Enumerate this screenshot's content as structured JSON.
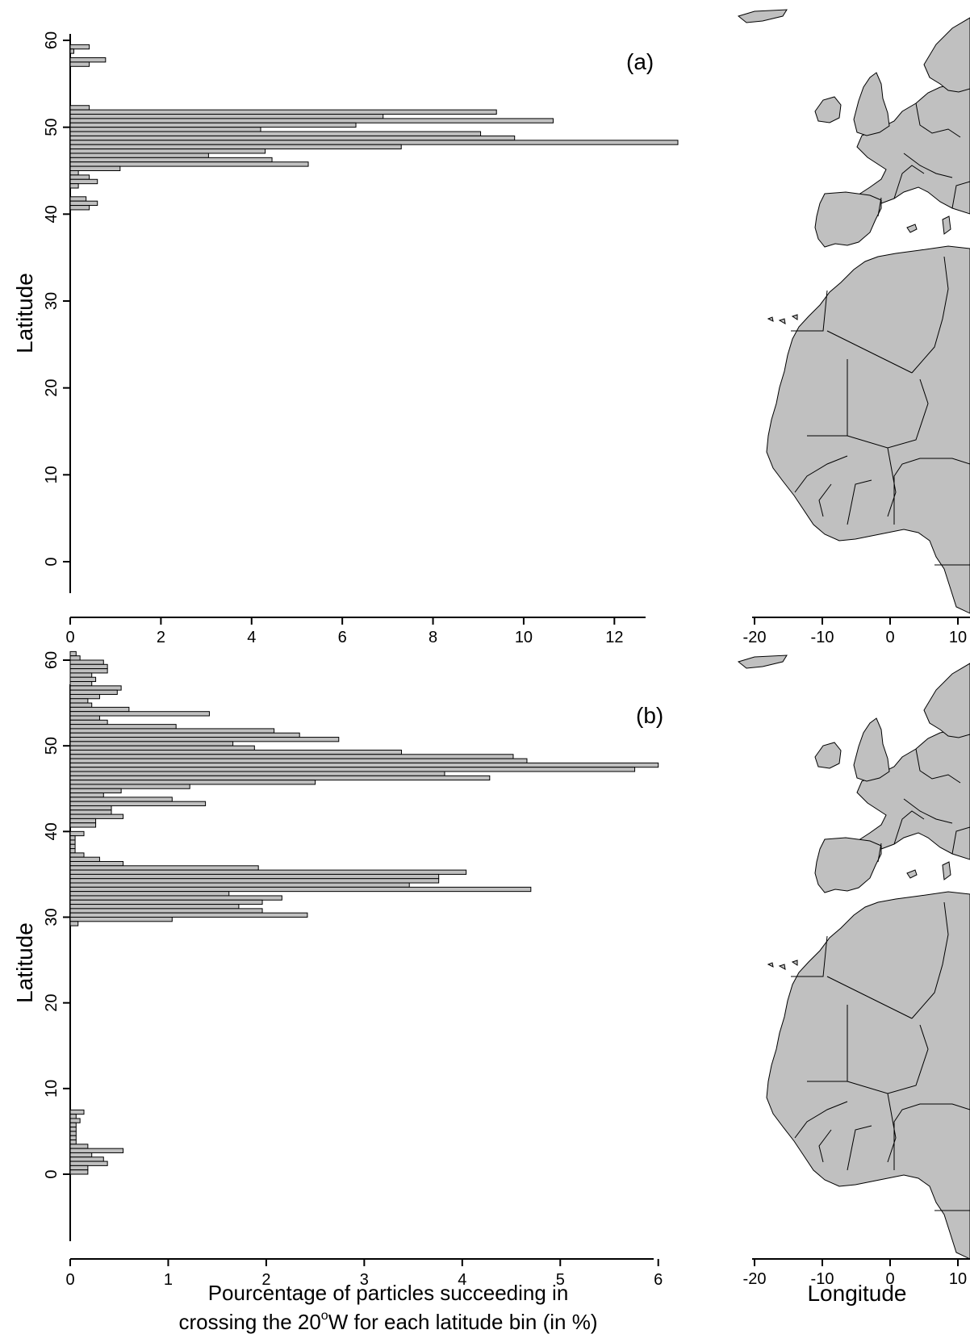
{
  "figure": {
    "map_fill_color": "#c0c0c0",
    "bar_fill_color": "#c0c0c0",
    "xlabel_line1": "Pourcentage of particles succeeding in",
    "xlabel_line2_before": "crossing the 20",
    "xlabel_degree": "o",
    "xlabel_line2_after": "W for each latitude bin (in %)",
    "map_xlabel": "Longitude"
  },
  "chart_data": [
    {
      "type": "bar",
      "orientation": "horizontal",
      "panel_label": "(a)",
      "ylabel": "Latitude",
      "ylim": [
        0,
        61
      ],
      "yticks": [
        0,
        10,
        20,
        30,
        40,
        50,
        60
      ],
      "xlim": [
        0,
        13.4
      ],
      "xticks": [
        0,
        2,
        4,
        6,
        8,
        10,
        12
      ],
      "bin_width": 0.5,
      "latitudes": [
        59.25,
        58.75,
        57.75,
        57.25,
        52.25,
        51.75,
        51.25,
        50.75,
        50.25,
        49.75,
        49.25,
        48.75,
        48.25,
        47.75,
        47.25,
        46.75,
        46.25,
        45.75,
        45.25,
        44.75,
        44.25,
        43.75,
        43.25,
        41.75,
        41.25,
        40.75
      ],
      "values": [
        0.42,
        0.08,
        0.78,
        0.42,
        0.42,
        9.4,
        6.9,
        10.65,
        6.3,
        4.2,
        9.05,
        9.8,
        13.4,
        7.3,
        4.3,
        3.05,
        4.45,
        5.25,
        1.1,
        0.18,
        0.42,
        0.6,
        0.18,
        0.35,
        0.6,
        0.42
      ]
    },
    {
      "type": "bar",
      "orientation": "horizontal",
      "panel_label": "(b)",
      "ylabel": "Latitude",
      "ylim": [
        0,
        61
      ],
      "yticks": [
        0,
        10,
        20,
        30,
        40,
        50,
        60
      ],
      "xlim": [
        0,
        6.2
      ],
      "xticks": [
        0,
        1,
        2,
        3,
        4,
        5,
        6
      ],
      "bin_width": 0.5,
      "latitudes": [
        60.75,
        60.25,
        59.75,
        59.25,
        58.75,
        58.25,
        57.75,
        57.25,
        56.75,
        56.25,
        55.75,
        55.25,
        54.75,
        54.25,
        53.75,
        53.25,
        52.75,
        52.25,
        51.75,
        51.25,
        50.75,
        50.25,
        49.75,
        49.25,
        48.75,
        48.25,
        47.75,
        47.25,
        46.75,
        46.25,
        45.75,
        45.25,
        44.75,
        44.25,
        43.75,
        43.25,
        42.75,
        42.25,
        41.75,
        41.25,
        40.75,
        39.75,
        39.25,
        38.75,
        38.25,
        37.75,
        37.25,
        36.75,
        36.25,
        35.75,
        35.25,
        34.75,
        34.25,
        33.75,
        33.25,
        32.75,
        32.25,
        31.75,
        31.25,
        30.75,
        30.25,
        29.75,
        29.25,
        7.25,
        6.75,
        6.25,
        5.75,
        5.25,
        4.75,
        4.25,
        3.75,
        3.25,
        2.75,
        2.25,
        1.75,
        1.25,
        0.75,
        0.25
      ],
      "values": [
        0.06,
        0.1,
        0.34,
        0.38,
        0.38,
        0.22,
        0.26,
        0.22,
        0.52,
        0.48,
        0.3,
        0.18,
        0.22,
        0.6,
        1.42,
        0.3,
        0.38,
        1.08,
        2.08,
        2.34,
        2.74,
        1.66,
        1.88,
        3.38,
        4.52,
        4.66,
        6.0,
        5.76,
        3.82,
        4.28,
        2.5,
        1.22,
        0.52,
        0.34,
        1.04,
        1.38,
        0.42,
        0.42,
        0.54,
        0.26,
        0.26,
        0.14,
        0.05,
        0.05,
        0.05,
        0.05,
        0.14,
        0.3,
        0.54,
        1.92,
        4.04,
        3.76,
        3.76,
        3.46,
        4.7,
        1.62,
        2.16,
        1.96,
        1.72,
        1.96,
        2.42,
        1.04,
        0.08,
        0.14,
        0.06,
        0.1,
        0.06,
        0.06,
        0.06,
        0.06,
        0.06,
        0.18,
        0.54,
        0.22,
        0.34,
        0.38,
        0.18,
        0.18
      ]
    }
  ],
  "maps": [
    {
      "xticks": [
        -20,
        -10,
        0,
        10
      ],
      "xtick_labels": [
        "-20",
        "-10",
        "0",
        "10"
      ]
    },
    {
      "xticks": [
        -20,
        -10,
        0,
        10
      ],
      "xtick_labels": [
        "-20",
        "-10",
        "0",
        "10"
      ]
    }
  ]
}
